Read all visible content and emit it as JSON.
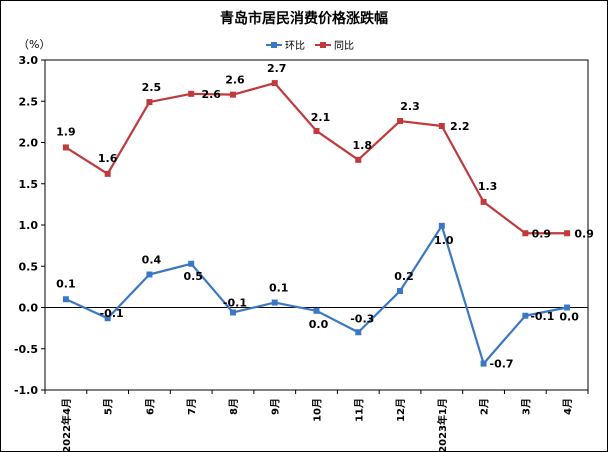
{
  "chart_data": {
    "type": "line",
    "title": "青岛市居民消费价格涨跌幅",
    "unit_label": "（%）",
    "categories": [
      "2022年4月",
      "5月",
      "6月",
      "7月",
      "8月",
      "9月",
      "10月",
      "11月",
      "12月",
      "2023年1月",
      "2月",
      "3月",
      "4月"
    ],
    "ylim": [
      -1.0,
      3.0
    ],
    "yticks": [
      "3.0",
      "2.5",
      "2.0",
      "1.5",
      "1.0",
      "0.5",
      "0.0",
      "-0.5",
      "-1.0"
    ],
    "ytick_values": [
      3.0,
      2.5,
      2.0,
      1.5,
      1.0,
      0.5,
      0.0,
      -0.5,
      -1.0
    ],
    "grid": false,
    "legend_position": "top-center",
    "series": [
      {
        "name": "环比",
        "color": "#3A78C4",
        "values": [
          0.1,
          -0.13,
          0.4,
          0.53,
          -0.06,
          0.06,
          -0.04,
          -0.3,
          0.2,
          0.99,
          -0.68,
          -0.1,
          0.0
        ],
        "labels": [
          "0.1",
          "-0.1",
          "0.4",
          "0.5",
          "-0.1",
          "0.1",
          "0.0",
          "-0.3",
          "0.2",
          "1.0",
          "-0.7",
          "-0.1",
          "0.0"
        ]
      },
      {
        "name": "同比",
        "color": "#C0393D",
        "values": [
          1.94,
          1.62,
          2.49,
          2.59,
          2.58,
          2.72,
          2.14,
          1.79,
          2.26,
          2.2,
          1.28,
          0.9,
          0.9
        ],
        "labels": [
          "1.9",
          "1.6",
          "2.5",
          "2.6",
          "2.6",
          "2.7",
          "2.1",
          "1.8",
          "2.3",
          "2.2",
          "1.3",
          "0.9",
          "0.9"
        ]
      }
    ]
  }
}
